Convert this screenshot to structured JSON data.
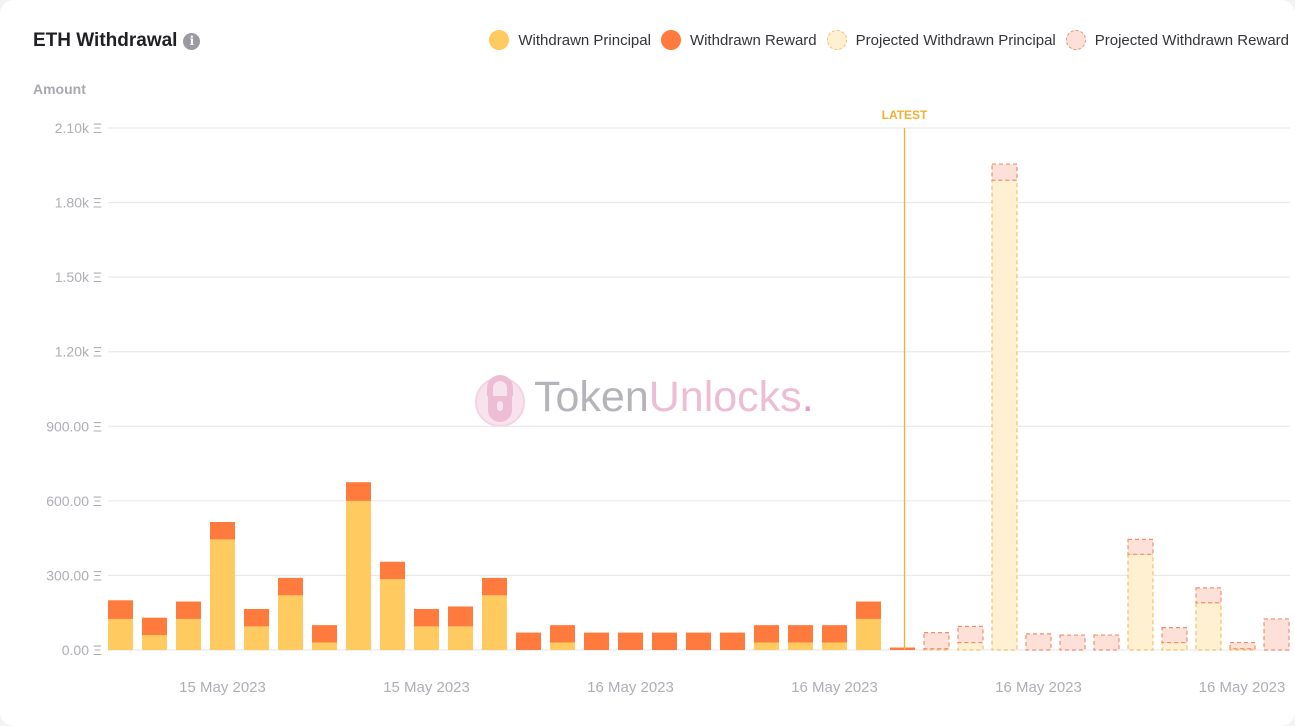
{
  "header": {
    "title": "ETH Withdrawal"
  },
  "legend": [
    {
      "label": "Withdrawn Principal",
      "fill": "#ffca5f",
      "stroke": "#ffca5f",
      "dashed": false
    },
    {
      "label": "Withdrawn Reward",
      "fill": "#ff7a3d",
      "stroke": "#ff7a3d",
      "dashed": false
    },
    {
      "label": "Projected Withdrawn Principal",
      "fill": "#fff0d2",
      "stroke": "#f4c06a",
      "dashed": true
    },
    {
      "label": "Projected Withdrawn Reward",
      "fill": "#fde1d8",
      "stroke": "#ee8f73",
      "dashed": true
    }
  ],
  "watermark": {
    "part1": "Token",
    "part2": "Unlocks",
    "part3": "."
  },
  "colors": {
    "principal": "#ffca5f",
    "reward": "#ff7a3d",
    "projected_principal_fill": "#fff0d2",
    "projected_principal_stroke": "#f4c06a",
    "projected_reward_fill": "#fde1d8",
    "projected_reward_stroke": "#ee8f73",
    "latest_line": "#f2b02f",
    "grid": "#e6e6ea",
    "tick_text": "#aeaeb6"
  },
  "chart_data": {
    "type": "bar",
    "stacked": true,
    "ylabel": "Amount",
    "ylim": [
      0,
      2100
    ],
    "yticks": [
      {
        "value": 0,
        "label": "0.00 Ξ"
      },
      {
        "value": 300,
        "label": "300.00 Ξ"
      },
      {
        "value": 600,
        "label": "600.00 Ξ"
      },
      {
        "value": 900,
        "label": "900.00 Ξ"
      },
      {
        "value": 1200,
        "label": "1.20k Ξ"
      },
      {
        "value": 1500,
        "label": "1.50k Ξ"
      },
      {
        "value": 1800,
        "label": "1.80k Ξ"
      },
      {
        "value": 2100,
        "label": "2.10k Ξ"
      }
    ],
    "xtick_labels": [
      {
        "bar_index": 3,
        "label": "15 May 2023"
      },
      {
        "bar_index": 9,
        "label": "15 May 2023"
      },
      {
        "bar_index": 15,
        "label": "16 May 2023"
      },
      {
        "bar_index": 21,
        "label": "16 May 2023"
      },
      {
        "bar_index": 27,
        "label": "16 May 2023"
      },
      {
        "bar_index": 33,
        "label": "16 May 2023"
      }
    ],
    "latest_label": "LATEST",
    "latest_after_index": 23,
    "series": [
      {
        "name": "Withdrawn Principal",
        "values": [
          125,
          60,
          125,
          445,
          95,
          220,
          30,
          600,
          285,
          95,
          95,
          220,
          0,
          30,
          0,
          0,
          0,
          0,
          0,
          30,
          30,
          30,
          125,
          0,
          0,
          0,
          0,
          0,
          0,
          0,
          0,
          0,
          0,
          0,
          0
        ]
      },
      {
        "name": "Withdrawn Reward",
        "values": [
          75,
          70,
          70,
          70,
          70,
          70,
          70,
          75,
          70,
          70,
          80,
          70,
          70,
          70,
          70,
          70,
          70,
          70,
          70,
          70,
          70,
          70,
          70,
          10,
          0,
          0,
          0,
          0,
          0,
          0,
          0,
          0,
          0,
          0,
          0
        ]
      },
      {
        "name": "Projected Withdrawn Principal",
        "values": [
          0,
          0,
          0,
          0,
          0,
          0,
          0,
          0,
          0,
          0,
          0,
          0,
          0,
          0,
          0,
          0,
          0,
          0,
          0,
          0,
          0,
          0,
          0,
          0,
          5,
          30,
          1890,
          0,
          0,
          0,
          385,
          30,
          190,
          5,
          0
        ]
      },
      {
        "name": "Projected Withdrawn Reward",
        "values": [
          0,
          0,
          0,
          0,
          0,
          0,
          0,
          0,
          0,
          0,
          0,
          0,
          0,
          0,
          0,
          0,
          0,
          0,
          0,
          0,
          0,
          0,
          0,
          0,
          65,
          65,
          65,
          65,
          60,
          60,
          60,
          60,
          60,
          25,
          125
        ]
      }
    ]
  }
}
